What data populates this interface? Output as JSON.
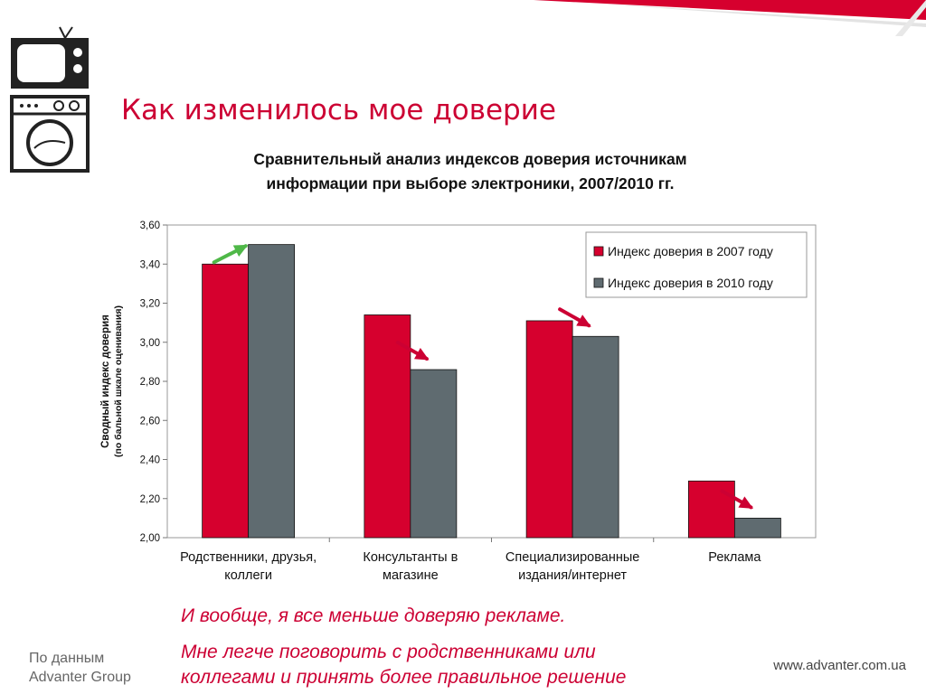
{
  "slide": {
    "title": "Как изменилось мое доверие",
    "notes": [
      "И вообще, я все меньше доверяю рекламе.",
      "Мне легче поговорить с родственниками или",
      "коллегами и принять более правильное решение"
    ],
    "source_line1": "По данным",
    "source_line2": "Advanter Group",
    "website": "www.advanter.com.ua",
    "icons": [
      "tv-icon",
      "washing-machine-icon"
    ],
    "accent_color": "#cc0033"
  },
  "chart_data": {
    "type": "bar",
    "title_line1": "Сравнительный анализ индексов доверия источникам",
    "title_line2": "информации при выборе электроники, 2007/2010 гг.",
    "ylabel_line1": "Сводный индекс доверия",
    "ylabel_line2": "(по бальной шкале оценивания)",
    "ylim": [
      2.0,
      3.6
    ],
    "yticks": [
      "2,00",
      "2,20",
      "2,40",
      "2,60",
      "2,80",
      "3,00",
      "3,20",
      "3,40",
      "3,60"
    ],
    "categories": [
      [
        "Родственники, друзья,",
        "коллеги"
      ],
      [
        "Консультанты в",
        "магазине"
      ],
      [
        "Специализированные",
        "издания/интернет"
      ],
      [
        "Реклама"
      ]
    ],
    "series": [
      {
        "name": "Индекс доверия в 2007 году",
        "color": "#d6002e",
        "values": [
          3.4,
          3.14,
          3.11,
          2.29
        ]
      },
      {
        "name": "Индекс доверия в 2010 году",
        "color": "#5f6b70",
        "values": [
          3.5,
          2.86,
          3.03,
          2.1
        ]
      }
    ],
    "trend_arrows": [
      "up",
      "down",
      "down",
      "down"
    ],
    "trend_colors": {
      "up": "#4fb848",
      "down": "#cc0033"
    },
    "legend_position": "top-right",
    "grid": false
  }
}
